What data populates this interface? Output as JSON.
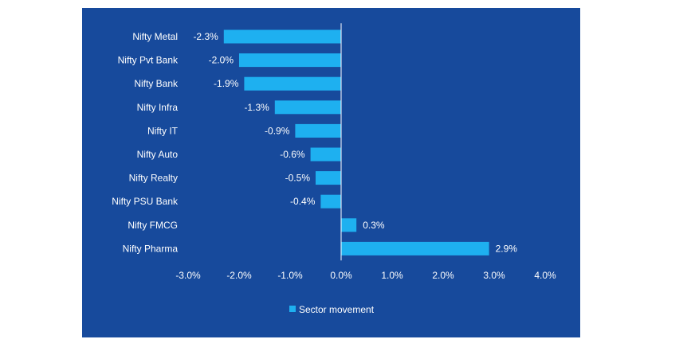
{
  "colors": {
    "panel_background": "#174a9c",
    "bar": "#1eb0f0",
    "axis": "#ffffff",
    "text": "#ffffff"
  },
  "chart_data": {
    "type": "bar",
    "orientation": "horizontal",
    "categories": [
      "Nifty Metal",
      "Nifty Pvt Bank",
      "Nifty Bank",
      "Nifty Infra",
      "Nifty IT",
      "Nifty Auto",
      "Nifty Realty",
      "Nifty PSU Bank",
      "Nifty FMCG",
      "Nifty Pharma"
    ],
    "series": [
      {
        "name": "Sector movement",
        "values": [
          -2.3,
          -2.0,
          -1.9,
          -1.3,
          -0.9,
          -0.6,
          -0.5,
          -0.4,
          0.3,
          2.9
        ],
        "labels": [
          "-2.3%",
          "-2.0%",
          "-1.9%",
          "-1.3%",
          "-0.9%",
          "-0.6%",
          "-0.5%",
          "-0.4%",
          "0.3%",
          "2.9%"
        ]
      }
    ],
    "xlim": [
      -3.0,
      4.0
    ],
    "xticks": [
      -3.0,
      -2.0,
      -1.0,
      0.0,
      1.0,
      2.0,
      3.0,
      4.0
    ],
    "xtick_labels": [
      "-3.0%",
      "-2.0%",
      "-1.0%",
      "0.0%",
      "1.0%",
      "2.0%",
      "3.0%",
      "4.0%"
    ],
    "title": "",
    "xlabel": "",
    "ylabel": "",
    "grid": false,
    "legend_position": "bottom"
  }
}
